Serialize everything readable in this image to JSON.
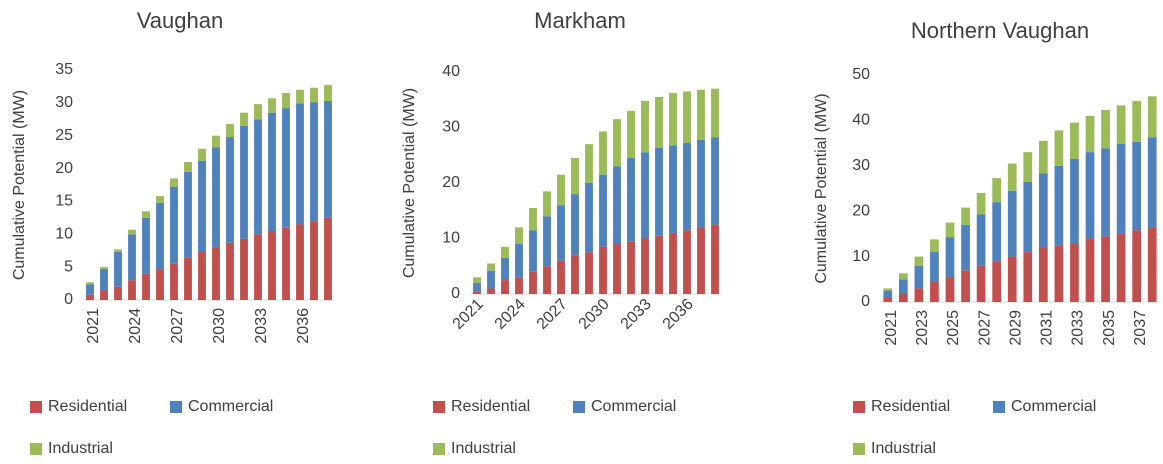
{
  "chart_data": [
    {
      "type": "stacked_bar",
      "title": "Vaughan",
      "y_label": "Cumulative Potential (MW)",
      "categories": [
        "2021",
        null,
        null,
        "2024",
        null,
        null,
        "2027",
        null,
        null,
        "2030",
        null,
        null,
        "2033",
        null,
        null,
        "2036",
        null,
        null
      ],
      "series": [
        {
          "name": "Residential",
          "color": "#c0504d",
          "values": [
            0.8,
            1.5,
            2,
            3,
            4,
            4.7,
            5.5,
            6.5,
            7.3,
            8,
            8.7,
            9.3,
            10,
            10.5,
            11,
            11.5,
            12,
            12.5
          ]
        },
        {
          "name": "Commercial",
          "color": "#4f81bd",
          "values": [
            1.6,
            3.2,
            5.3,
            7,
            8.5,
            10.1,
            11.7,
            13,
            13.9,
            15.2,
            16.1,
            17.2,
            17.5,
            18,
            18.2,
            18.4,
            18.1,
            17.8
          ]
        },
        {
          "name": "Industrial",
          "color": "#9bbb59",
          "values": [
            0.3,
            0.3,
            0.4,
            0.7,
            1,
            1,
            1.3,
            1.5,
            1.8,
            1.8,
            2,
            2,
            2.3,
            2.2,
            2.3,
            2.1,
            2.2,
            2.4
          ]
        }
      ],
      "ylim": [
        0,
        35
      ],
      "yticks": [
        0,
        5,
        10,
        15,
        20,
        25,
        30,
        35
      ]
    },
    {
      "type": "stacked_bar",
      "title": "Markham",
      "y_label": "Cumulative Potential (MW)",
      "categories": [
        "2021",
        null,
        null,
        "2024",
        null,
        null,
        "2027",
        null,
        null,
        "2030",
        null,
        null,
        "2033",
        null,
        null,
        "2036",
        null,
        null
      ],
      "series": [
        {
          "name": "Residential",
          "color": "#c0504d",
          "values": [
            0.5,
            1,
            2.5,
            3,
            4,
            5,
            6,
            7,
            7.5,
            8.5,
            9,
            9.5,
            10,
            10.5,
            11,
            11.5,
            12,
            12.5
          ]
        },
        {
          "name": "Commercial",
          "color": "#4f81bd",
          "values": [
            1.5,
            3.2,
            4,
            6,
            7.5,
            9,
            10,
            11,
            12.5,
            13,
            14,
            15,
            15.5,
            15.8,
            15.8,
            15.7,
            15.8,
            15.7
          ]
        },
        {
          "name": "Industrial",
          "color": "#9bbb59",
          "values": [
            1,
            1.3,
            2,
            3,
            4,
            4.5,
            5.5,
            6.5,
            7,
            7.8,
            8.5,
            8.5,
            9.3,
            9.2,
            9.4,
            9.3,
            9,
            8.8
          ]
        }
      ],
      "ylim": [
        0,
        40
      ],
      "yticks": [
        0,
        10,
        20,
        30,
        40
      ]
    },
    {
      "type": "stacked_bar",
      "title": "Northern Vaughan",
      "y_label": "Cumulative Potential (MW)",
      "categories": [
        "2021",
        null,
        "2023",
        null,
        "2025",
        null,
        "2027",
        null,
        "2029",
        null,
        "2031",
        null,
        "2033",
        null,
        "2035",
        null,
        "2037",
        null
      ],
      "series": [
        {
          "name": "Residential",
          "color": "#c0504d",
          "values": [
            1,
            2,
            3,
            4.5,
            5.5,
            7,
            8,
            9,
            10,
            11,
            12,
            12.5,
            13,
            14,
            14.5,
            15,
            15.8,
            16.5
          ]
        },
        {
          "name": "Commercial",
          "color": "#4f81bd",
          "values": [
            1.5,
            3,
            5,
            6.5,
            8.8,
            10,
            11.3,
            13,
            14.5,
            15.5,
            16.3,
            17.5,
            18.5,
            19,
            19.3,
            19.8,
            19.5,
            19.8
          ]
        },
        {
          "name": "Industrial",
          "color": "#9bbb59",
          "values": [
            0.5,
            1.3,
            2,
            2.8,
            3.2,
            3.8,
            4.7,
            5.3,
            6,
            6.5,
            7.2,
            7.8,
            8,
            8,
            8.5,
            8.5,
            9,
            9
          ]
        }
      ],
      "ylim": [
        0,
        50
      ],
      "yticks": [
        0,
        10,
        20,
        30,
        40,
        50
      ]
    }
  ]
}
